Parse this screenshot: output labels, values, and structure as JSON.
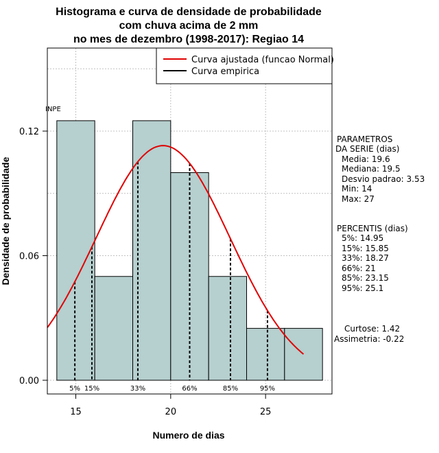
{
  "chart_data": {
    "type": "bar",
    "title_lines": [
      "Histograma e curva de densidade de probabilidade",
      "com chuva acima de 2 mm",
      "no mes de dezembro (1998-2017): Regiao 14"
    ],
    "xlabel": "Numero de dias",
    "ylabel": "Densidade de probabilidade",
    "xlim": [
      13.5,
      28.5
    ],
    "ylim": [
      0,
      0.16
    ],
    "x_ticks": [
      15,
      20,
      25
    ],
    "y_ticks": [
      0.0,
      0.06,
      0.12
    ],
    "y_tick_labels": [
      "0.00",
      "0.06",
      "0.12"
    ],
    "grid": true,
    "bins": [
      {
        "from": 14,
        "to": 16,
        "density": 0.125
      },
      {
        "from": 16,
        "to": 18,
        "density": 0.05
      },
      {
        "from": 18,
        "to": 20,
        "density": 0.125
      },
      {
        "from": 20,
        "to": 22,
        "density": 0.1
      },
      {
        "from": 22,
        "to": 24,
        "density": 0.05
      },
      {
        "from": 24,
        "to": 26,
        "density": 0.025
      },
      {
        "from": 26,
        "to": 28,
        "density": 0.025
      }
    ],
    "bar_color": "#b6cfcf",
    "curve_color": "#e00000",
    "normal_fit": {
      "mean": 19.6,
      "sd": 3.53,
      "x_range": [
        13.5,
        27
      ]
    },
    "percentiles": [
      {
        "label": "5%",
        "value": 14.95
      },
      {
        "label": "15%",
        "value": 15.85
      },
      {
        "label": "33%",
        "value": 18.27
      },
      {
        "label": "66%",
        "value": 21
      },
      {
        "label": "85%",
        "value": 23.15
      },
      {
        "label": "95%",
        "value": 25.1
      }
    ],
    "legend": {
      "position": "top-right",
      "entries": [
        {
          "label": "Curva ajustada (funcao Normal)",
          "color": "#e00000"
        },
        {
          "label": "Curva empirica",
          "color": "#000000"
        }
      ]
    },
    "watermark": "INPE"
  },
  "stats_panel": {
    "params_header": [
      "PARAMETROS",
      "DA SERIE (dias)"
    ],
    "params": [
      "Media: 19.6",
      "Mediana: 19.5",
      "Desvio padrao: 3.53",
      "Min: 14",
      "Max: 27"
    ],
    "percentis_header": "PERCENTIS (dias)",
    "percentis": [
      "5%: 14.95",
      "15%: 15.85",
      "33%: 18.27",
      "66%: 21",
      "85%: 23.15",
      "95%: 25.1"
    ],
    "curtose": "Curtose: 1.42",
    "assimetria": "Assimetria: -0.22"
  }
}
